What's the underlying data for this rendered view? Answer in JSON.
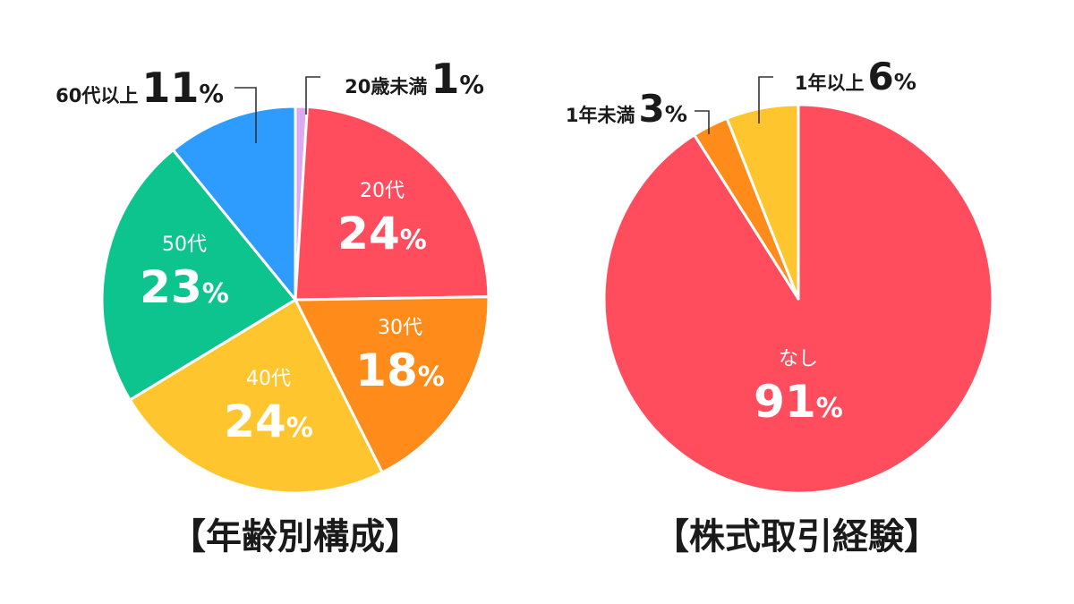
{
  "chart_data": [
    {
      "type": "pie",
      "title": "【年齢別構成】",
      "slices": [
        {
          "label": "20歳未満",
          "value": 1,
          "display": "1%",
          "color": "#dcaaf0"
        },
        {
          "label": "20代",
          "value": 24,
          "display": "24%",
          "color": "#ff4d5e"
        },
        {
          "label": "30代",
          "value": 18,
          "display": "18%",
          "color": "#ff8c1a"
        },
        {
          "label": "40代",
          "value": 24,
          "display": "24%",
          "color": "#ffc52e"
        },
        {
          "label": "50代",
          "value": 23,
          "display": "23%",
          "color": "#0ec48e"
        },
        {
          "label": "60代以上",
          "value": 11,
          "display": "11%",
          "color": "#2e9bff"
        }
      ]
    },
    {
      "type": "pie",
      "title": "【株式取引経験】",
      "slices": [
        {
          "label": "なし",
          "value": 91,
          "display": "91%",
          "color": "#ff4d5e"
        },
        {
          "label": "1年未満",
          "value": 3,
          "display": "3%",
          "color": "#ff8c1a"
        },
        {
          "label": "1年以上",
          "value": 6,
          "display": "6%",
          "color": "#ffc52e"
        }
      ]
    }
  ],
  "colors": {
    "text": "#1a1a1a",
    "inside_label": "#ffffff",
    "slice_border": "#ffffff",
    "leader_line": "#333333"
  }
}
